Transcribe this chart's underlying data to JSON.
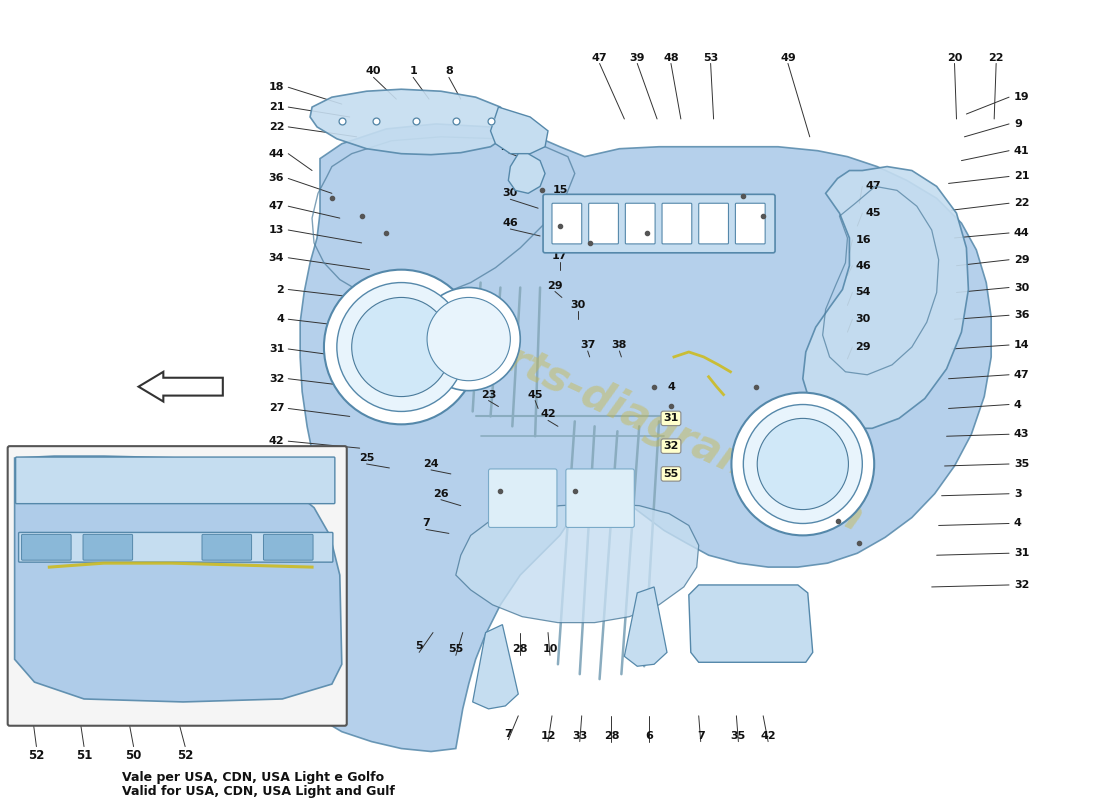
{
  "bg_color": "#ffffff",
  "mc": "#a8c8e8",
  "lc": "#c5ddf0",
  "dc": "#7aaac8",
  "ec": "#5588aa",
  "wm_color": "#c8b84a",
  "wm_text": "parts-diagram.com",
  "arrow_dir": "left",
  "note1": "Vale per USA, CDN, USA Light e Golfo",
  "note2": "Valid for USA, CDN, USA Light and Gulf",
  "label_fs": 8.0,
  "label_color": "#111111"
}
